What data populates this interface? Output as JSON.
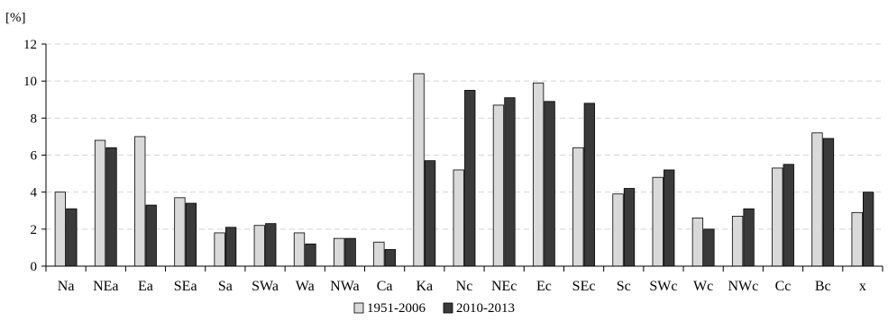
{
  "chart_data": {
    "type": "bar",
    "y_unit": "[%]",
    "ylim": [
      0,
      12
    ],
    "y_ticks": [
      0,
      2,
      4,
      6,
      8,
      10,
      12
    ],
    "grid": true,
    "legend_position": "bottom-center",
    "categories": [
      "Na",
      "NEa",
      "Ea",
      "SEa",
      "Sa",
      "SWa",
      "Wa",
      "NWa",
      "Ca",
      "Ka",
      "Nc",
      "NEc",
      "Ec",
      "SEc",
      "Sc",
      "SWc",
      "Wc",
      "NWc",
      "Cc",
      "Bc",
      "x"
    ],
    "series": [
      {
        "name": "1951-2006",
        "color": "#d9d9d9",
        "values": [
          4.0,
          6.8,
          7.0,
          3.7,
          1.8,
          2.2,
          1.8,
          1.5,
          1.3,
          10.4,
          5.2,
          8.7,
          9.9,
          6.4,
          3.9,
          4.8,
          2.6,
          2.7,
          5.3,
          7.2,
          2.9
        ]
      },
      {
        "name": "2010-2013",
        "color": "#3a3a3a",
        "values": [
          3.1,
          6.4,
          3.3,
          3.4,
          2.1,
          2.3,
          1.2,
          1.5,
          0.9,
          5.7,
          9.5,
          9.1,
          8.9,
          8.8,
          4.2,
          5.2,
          2.0,
          3.1,
          5.5,
          6.9,
          4.0
        ]
      }
    ]
  }
}
